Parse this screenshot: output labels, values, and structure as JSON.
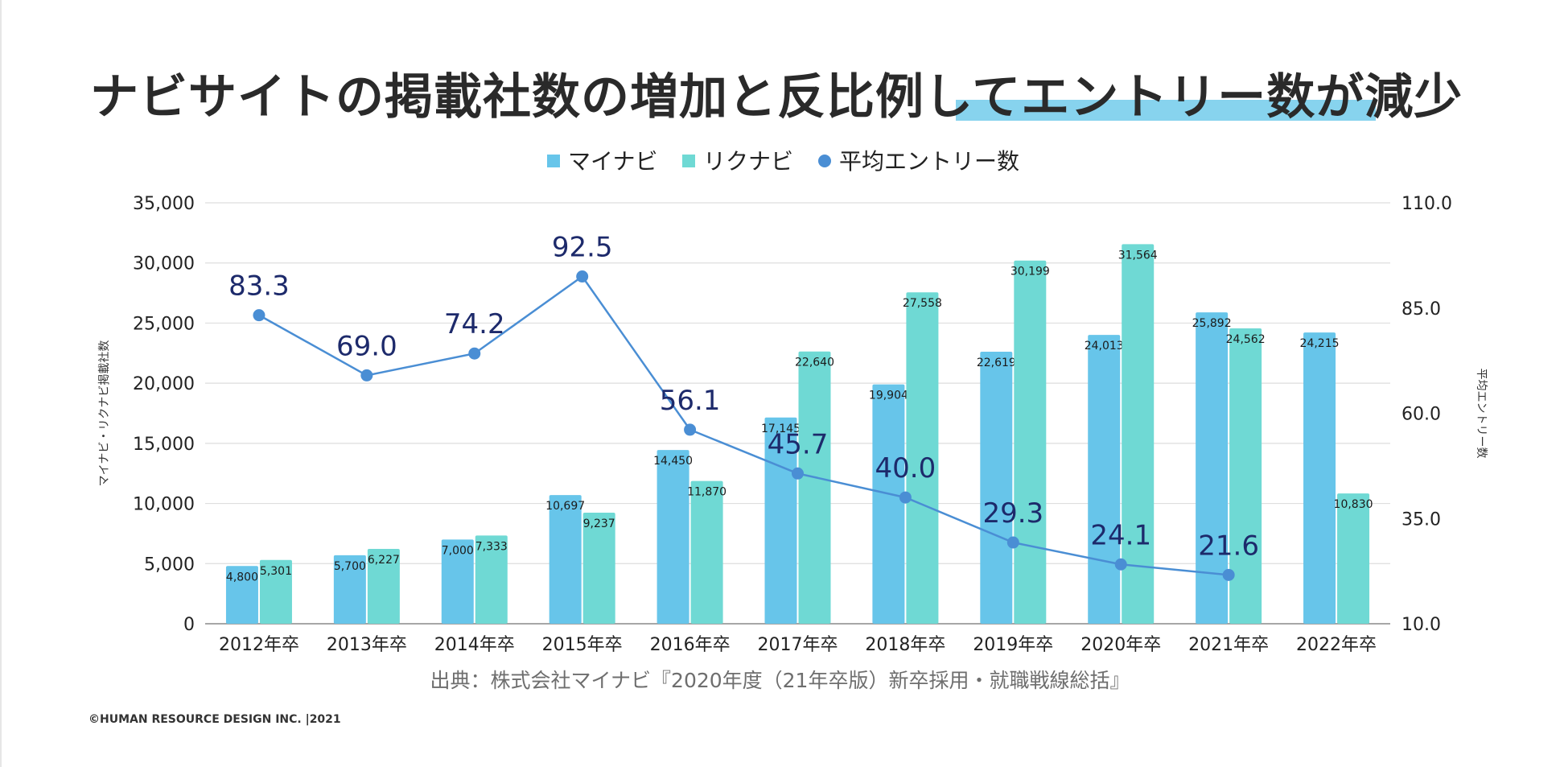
{
  "page": {
    "title": "ナビサイトの掲載社数の増加と反比例してエントリー数が減少",
    "source": "出典：株式会社マイナビ『2020年度（21年卒版）新卒採用・就職戦線総括』",
    "copyright": "©HUMAN RESOURCE DESIGN INC. |2021"
  },
  "colors": {
    "mynavi": "#67c5ea",
    "rikunabi": "#6fd9d4",
    "entry": "#4a8ed4",
    "entry_label": "#1d2a6b",
    "grid": "#dedede",
    "axis_text": "#222222",
    "title_highlight": "#87d3ee"
  },
  "chart_data": {
    "type": "bar",
    "title": "",
    "categories": [
      "2012年卒",
      "2013年卒",
      "2014年卒",
      "2015年卒",
      "2016年卒",
      "2017年卒",
      "2018年卒",
      "2019年卒",
      "2020年卒",
      "2021年卒",
      "2022年卒"
    ],
    "series": [
      {
        "name": "マイナビ",
        "type": "bar",
        "axis": "left",
        "values": [
          4800,
          5700,
          7000,
          10697,
          14450,
          17145,
          19904,
          22619,
          24013,
          25892,
          24215
        ],
        "labels": [
          "4,800",
          "5,700",
          "7,000",
          "10,697",
          "14,450",
          "17,145",
          "19,904",
          "22,619",
          "24,013",
          "25,892",
          "24,215"
        ]
      },
      {
        "name": "リクナビ",
        "type": "bar",
        "axis": "left",
        "values": [
          5301,
          6227,
          7333,
          9237,
          11870,
          22640,
          27558,
          30199,
          31564,
          24562,
          10830
        ],
        "labels": [
          "5,301",
          "6,227",
          "7,333",
          "9,237",
          "11,870",
          "22,640",
          "27,558",
          "30,199",
          "31,564",
          "24,562",
          "10,830"
        ]
      },
      {
        "name": "平均エントリー数",
        "type": "line",
        "axis": "right",
        "values": [
          83.3,
          69.0,
          74.2,
          92.5,
          56.1,
          45.7,
          40.0,
          29.3,
          24.1,
          21.6,
          null
        ],
        "labels": [
          "83.3",
          "69.0",
          "74.2",
          "92.5",
          "56.1",
          "45.7",
          "40.0",
          "29.3",
          "24.1",
          "21.6",
          ""
        ]
      }
    ],
    "y_left": {
      "label": "マイナビ・リクナビ掲載社数",
      "min": 0,
      "max": 35000,
      "ticks": [
        0,
        5000,
        10000,
        15000,
        20000,
        25000,
        30000,
        35000
      ],
      "tick_labels": [
        "0",
        "5,000",
        "10,000",
        "15,000",
        "20,000",
        "25,000",
        "30,000",
        "35,000"
      ]
    },
    "y_right": {
      "label": "平均エントリー数",
      "min": 10,
      "max": 110,
      "ticks": [
        10,
        35,
        60,
        85,
        110
      ],
      "tick_labels": [
        "10.0",
        "35.0",
        "60.0",
        "85.0",
        "110.0"
      ]
    },
    "legend": {
      "position": "top-center",
      "entries": [
        "マイナビ",
        "リクナビ",
        "平均エントリー数"
      ]
    },
    "grid": true
  }
}
